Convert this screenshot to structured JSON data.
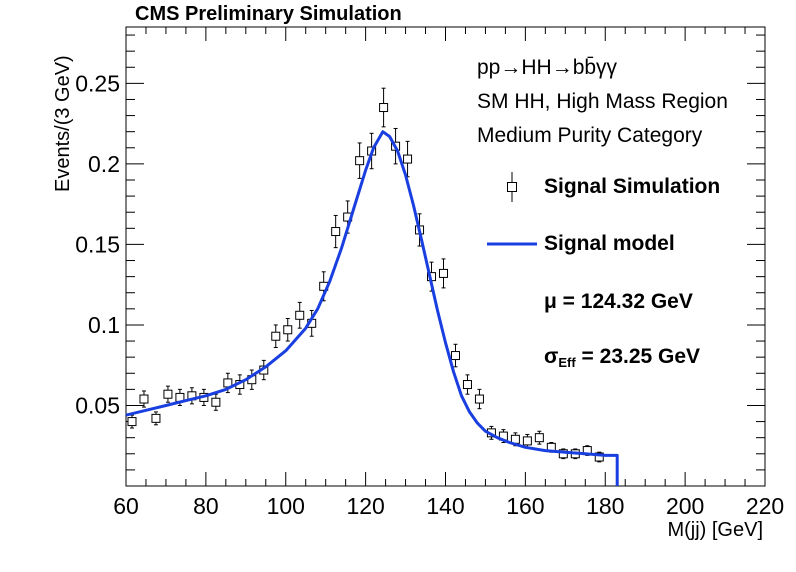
{
  "chart_data": {
    "type": "scatter",
    "title": "CMS Preliminary Simulation",
    "xlabel": "M(jj) [GeV]",
    "ylabel": "Events/(3 GeV)",
    "xlim": [
      60,
      220
    ],
    "ylim": [
      0,
      0.285
    ],
    "xticks": [
      60,
      80,
      100,
      120,
      140,
      160,
      180,
      200,
      220
    ],
    "yticks": [
      0.05,
      0.1,
      0.15,
      0.2,
      0.25
    ],
    "ytick_labels": [
      "0.05",
      "0.1",
      "0.15",
      "0.2",
      "0.25"
    ],
    "annotations": [
      "pp→HH→bb̄γγ",
      "SM HH, High Mass Region",
      "Medium Purity Category"
    ],
    "legend": {
      "placement": "right",
      "entries": [
        {
          "label": "Signal Simulation",
          "marker": "open-square"
        },
        {
          "label": "Signal model",
          "color": "#1a3fe0"
        }
      ]
    },
    "mu_label": "μ = 124.32 GeV",
    "sigma_label_main": "σ",
    "sigma_label_sub": "Eff",
    "sigma_label_rest": " = 23.25 GeV",
    "series": [
      {
        "name": "Signal Simulation",
        "type": "points",
        "x": [
          61.5,
          64.5,
          67.5,
          70.5,
          73.5,
          76.5,
          79.5,
          82.5,
          85.5,
          88.5,
          91.5,
          94.5,
          97.5,
          100.5,
          103.5,
          106.5,
          109.5,
          112.5,
          115.5,
          118.5,
          121.5,
          124.5,
          127.5,
          130.5,
          133.5,
          136.5,
          139.5,
          142.5,
          145.5,
          148.5,
          151.5,
          154.5,
          157.5,
          160.5,
          163.5,
          166.5,
          169.5,
          172.5,
          175.5,
          178.5
        ],
        "y": [
          0.04,
          0.054,
          0.042,
          0.057,
          0.055,
          0.056,
          0.055,
          0.052,
          0.064,
          0.063,
          0.066,
          0.072,
          0.093,
          0.097,
          0.106,
          0.101,
          0.124,
          0.158,
          0.167,
          0.202,
          0.208,
          0.235,
          0.211,
          0.203,
          0.159,
          0.13,
          0.132,
          0.081,
          0.063,
          0.054,
          0.033,
          0.031,
          0.029,
          0.028,
          0.03,
          0.024,
          0.02,
          0.02,
          0.022,
          0.018
        ],
        "err": [
          0.004,
          0.005,
          0.004,
          0.005,
          0.005,
          0.005,
          0.005,
          0.005,
          0.006,
          0.006,
          0.006,
          0.006,
          0.007,
          0.007,
          0.008,
          0.008,
          0.009,
          0.01,
          0.01,
          0.011,
          0.011,
          0.012,
          0.011,
          0.011,
          0.01,
          0.009,
          0.009,
          0.007,
          0.006,
          0.006,
          0.004,
          0.004,
          0.004,
          0.004,
          0.004,
          0.003,
          0.003,
          0.003,
          0.003,
          0.003
        ]
      },
      {
        "name": "Signal model",
        "type": "line",
        "color": "#1a3fe0",
        "x": [
          60,
          65,
          70,
          75,
          80,
          85,
          90,
          95,
          100,
          105,
          108,
          111,
          114,
          117,
          120,
          122,
          124.3,
          126,
          128,
          130,
          132,
          134,
          136,
          138,
          140,
          142,
          144,
          146,
          148,
          150,
          153,
          156,
          160,
          165,
          170,
          175,
          180,
          183,
          183
        ],
        "y": [
          0.044,
          0.047,
          0.05,
          0.053,
          0.056,
          0.06,
          0.066,
          0.074,
          0.084,
          0.098,
          0.11,
          0.127,
          0.148,
          0.172,
          0.196,
          0.21,
          0.22,
          0.217,
          0.208,
          0.193,
          0.174,
          0.153,
          0.131,
          0.109,
          0.089,
          0.071,
          0.056,
          0.046,
          0.039,
          0.034,
          0.03,
          0.027,
          0.024,
          0.022,
          0.021,
          0.02,
          0.019,
          0.019,
          0.0
        ]
      }
    ]
  }
}
